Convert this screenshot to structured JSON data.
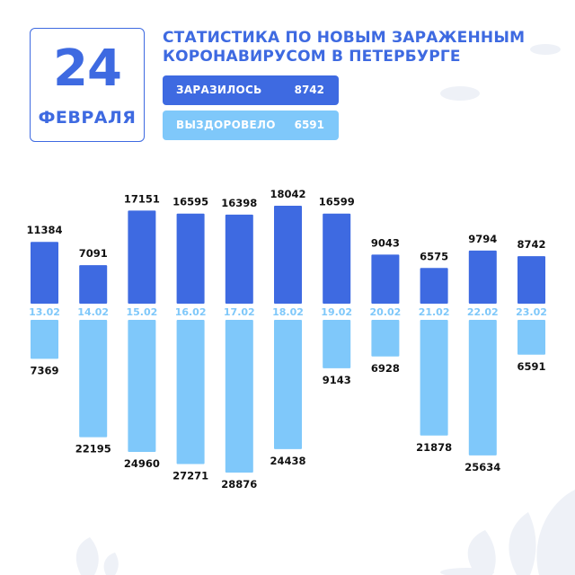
{
  "header": {
    "day": "24",
    "month": "ФЕВРАЛЯ",
    "title_line1": "СТАТИСТИКА ПО НОВЫМ ЗАРАЖЕННЫМ",
    "title_line2": "КОРОНАВИРУСОМ В ПЕТЕРБУРГЕ"
  },
  "summary": {
    "infected_label": "ЗАРАЗИЛОСЬ",
    "infected_value": "8742",
    "recovered_label": "ВЫЗДОРОВЕЛО",
    "recovered_value": "6591"
  },
  "colors": {
    "infected": "#3e6ae1",
    "recovered": "#7fc8fa",
    "text": "#111111",
    "decor": "#eef1f7"
  },
  "chart_data": {
    "type": "bar",
    "categories": [
      "13.02",
      "14.02",
      "15.02",
      "16.02",
      "17.02",
      "18.02",
      "19.02",
      "20.02",
      "21.02",
      "22.02",
      "23.02"
    ],
    "series": [
      {
        "values": [
          11384,
          7091,
          17151,
          16595,
          16398,
          18042,
          16599,
          9043,
          6575,
          9794,
          8742
        ]
      },
      {
        "values": [
          7369,
          22195,
          24960,
          27271,
          28876,
          24438,
          9143,
          6928,
          21878,
          25634,
          6591
        ]
      }
    ],
    "title": "",
    "xlabel": "",
    "ylabel": "",
    "grid": false,
    "legend": "none"
  }
}
